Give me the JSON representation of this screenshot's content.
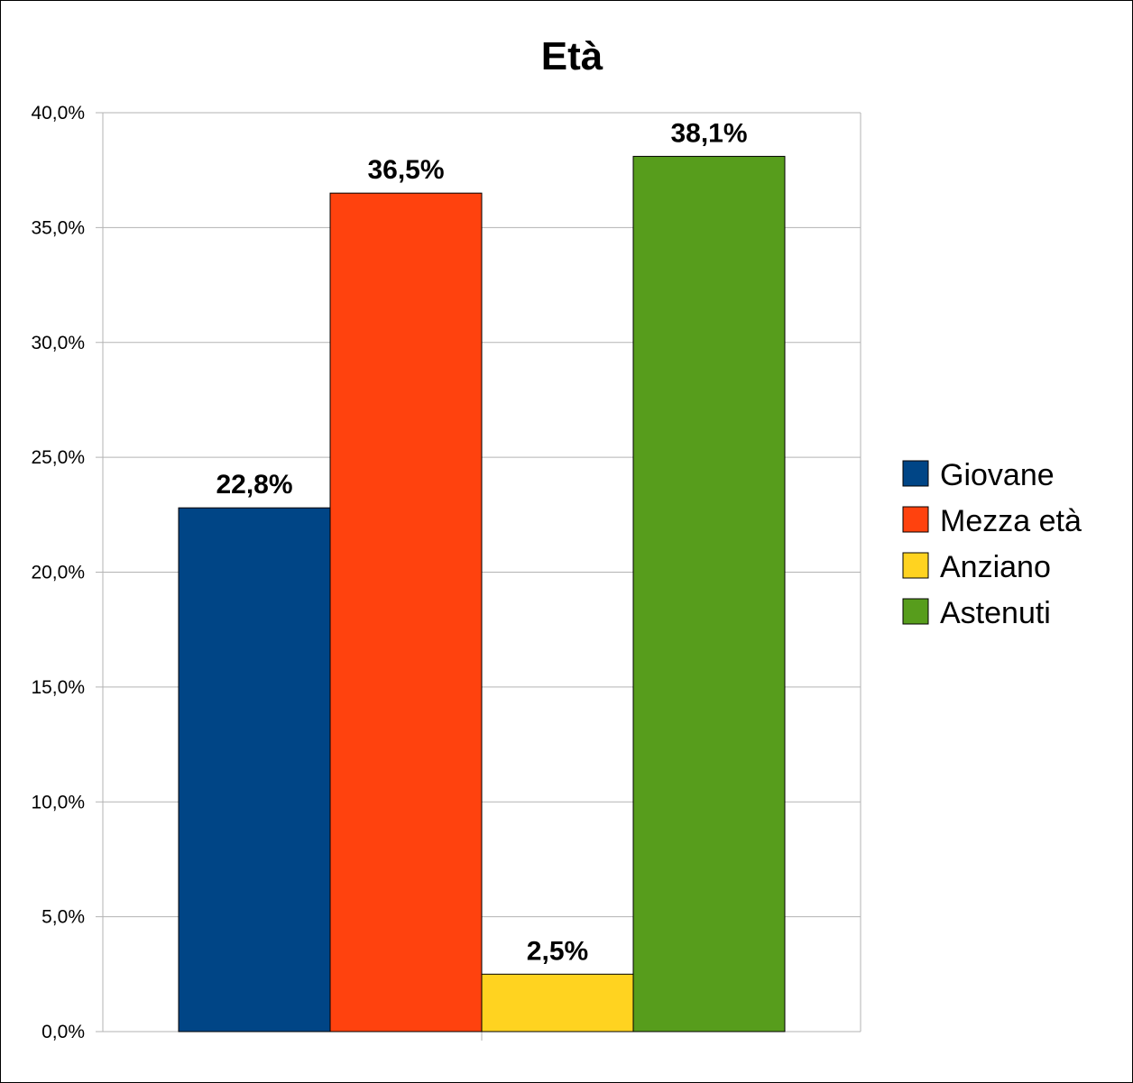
{
  "chart_data": {
    "type": "bar",
    "title": "Età",
    "categories": [
      ""
    ],
    "series": [
      {
        "name": "Giovane",
        "values": [
          22.8
        ],
        "label": "22,8%",
        "color": "#004586"
      },
      {
        "name": "Mezza età",
        "values": [
          36.5
        ],
        "label": "36,5%",
        "color": "#ff420e"
      },
      {
        "name": "Anziano",
        "values": [
          2.5
        ],
        "label": "2,5%",
        "color": "#ffd320"
      },
      {
        "name": "Astenuti",
        "values": [
          38.1
        ],
        "label": "38,1%",
        "color": "#579d1c"
      }
    ],
    "ylim": [
      0,
      40
    ],
    "yticks": [
      0,
      5,
      10,
      15,
      20,
      25,
      30,
      35,
      40
    ],
    "ytick_labels": [
      "0,0%",
      "5,0%",
      "10,0%",
      "15,0%",
      "20,0%",
      "25,0%",
      "30,0%",
      "35,0%",
      "40,0%"
    ],
    "grid": true,
    "legend": "right"
  }
}
